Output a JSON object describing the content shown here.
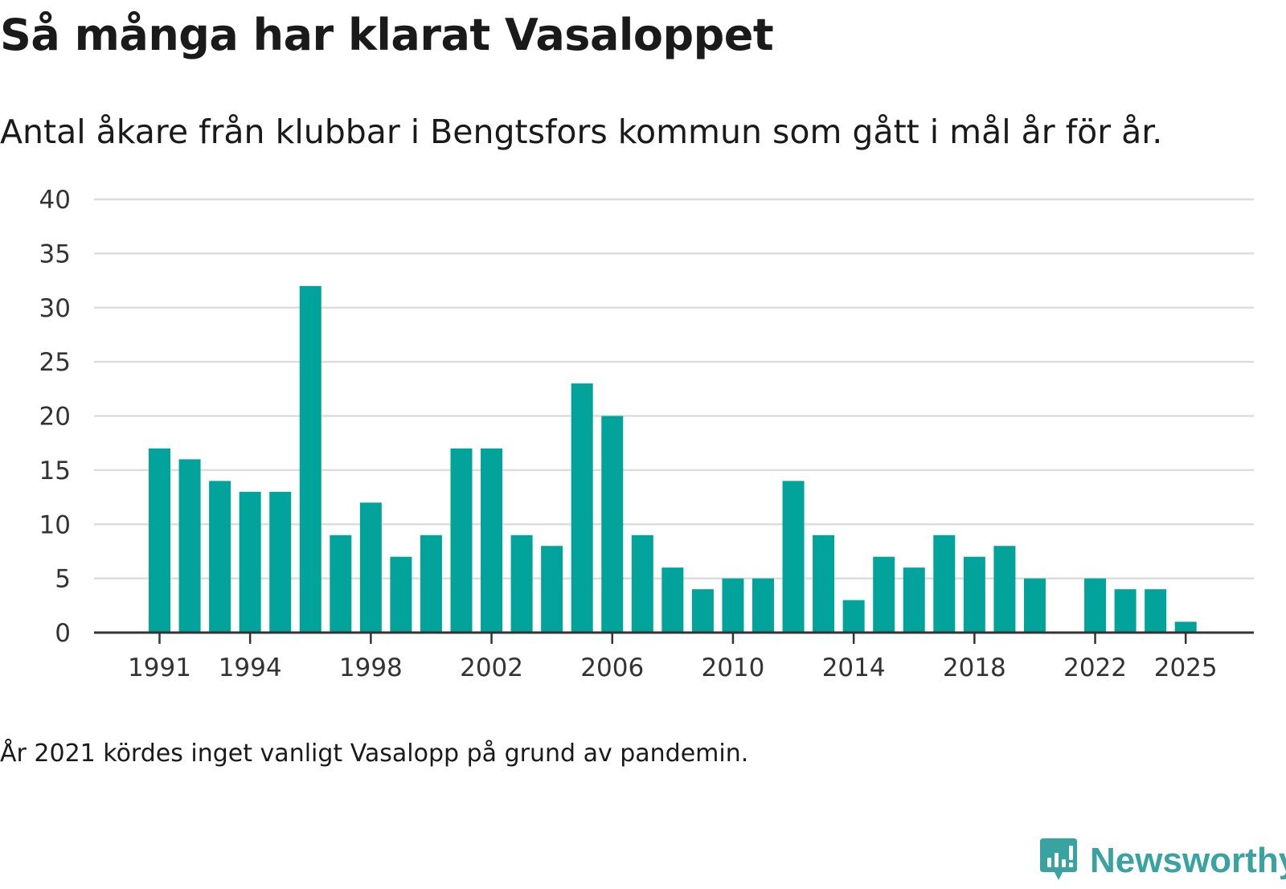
{
  "title": "Så många har klarat Vasaloppet",
  "subtitle": "Antal åkare från klubbar i Bengtsfors kommun som gått i mål år för år.",
  "note": "År 2021 kördes inget vanligt Vasalopp på grund av pandemin.",
  "brand": {
    "name": "Newsworthy",
    "icon": "newsworthy-logo-icon"
  },
  "colors": {
    "bar": "#02a39a",
    "grid": "#dddddd",
    "axis": "#333333",
    "brand": "#38a3a0"
  },
  "chart_data": {
    "type": "bar",
    "title": "Så många har klarat Vasaloppet",
    "xlabel": "",
    "ylabel": "",
    "ylim": [
      0,
      40
    ],
    "yticks": [
      0,
      5,
      10,
      15,
      20,
      25,
      30,
      35,
      40
    ],
    "xticks": [
      "1991",
      "1994",
      "1998",
      "2002",
      "2006",
      "2010",
      "2014",
      "2018",
      "2022",
      "2025"
    ],
    "grid": true,
    "categories": [
      "1991",
      "1992",
      "1993",
      "1994",
      "1995",
      "1996",
      "1997",
      "1998",
      "1999",
      "2000",
      "2001",
      "2002",
      "2003",
      "2004",
      "2005",
      "2006",
      "2007",
      "2008",
      "2009",
      "2010",
      "2011",
      "2012",
      "2013",
      "2014",
      "2015",
      "2016",
      "2017",
      "2018",
      "2019",
      "2020",
      "2021",
      "2022",
      "2023",
      "2024",
      "2025"
    ],
    "values": [
      17,
      16,
      14,
      13,
      13,
      32,
      9,
      12,
      7,
      9,
      17,
      17,
      9,
      8,
      23,
      20,
      9,
      6,
      4,
      5,
      5,
      14,
      9,
      3,
      7,
      6,
      9,
      7,
      8,
      5,
      null,
      5,
      4,
      4,
      1
    ]
  }
}
